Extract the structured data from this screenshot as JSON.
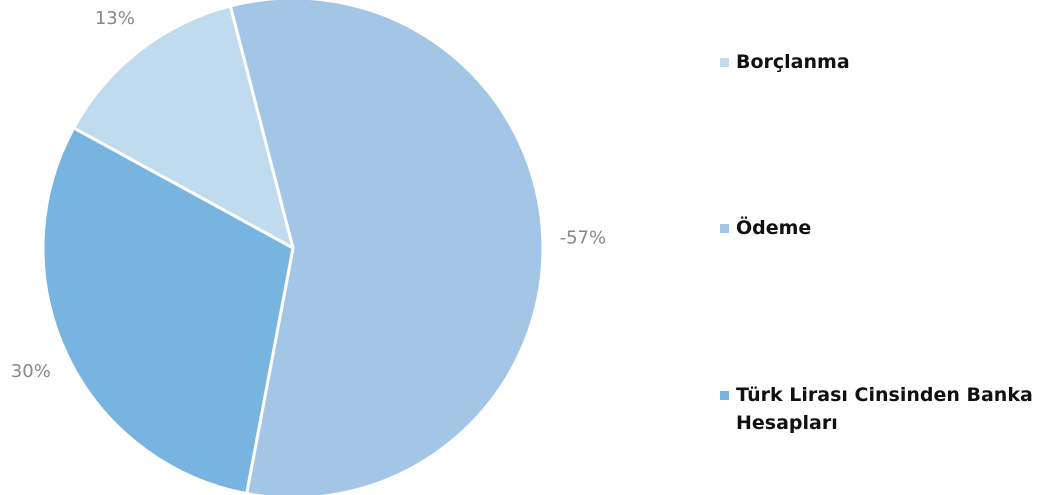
{
  "chart_data": {
    "type": "pie",
    "categories": [
      "Borçlanma",
      "Ödeme",
      "Türk Lirası Cinsinden Banka Hesapları"
    ],
    "values": [
      13,
      -57,
      30
    ],
    "value_labels": [
      "13%",
      "-57%",
      "30%"
    ],
    "colors": [
      "#c0daee",
      "#a3c6e6",
      "#77b4df"
    ],
    "legend": "right"
  }
}
